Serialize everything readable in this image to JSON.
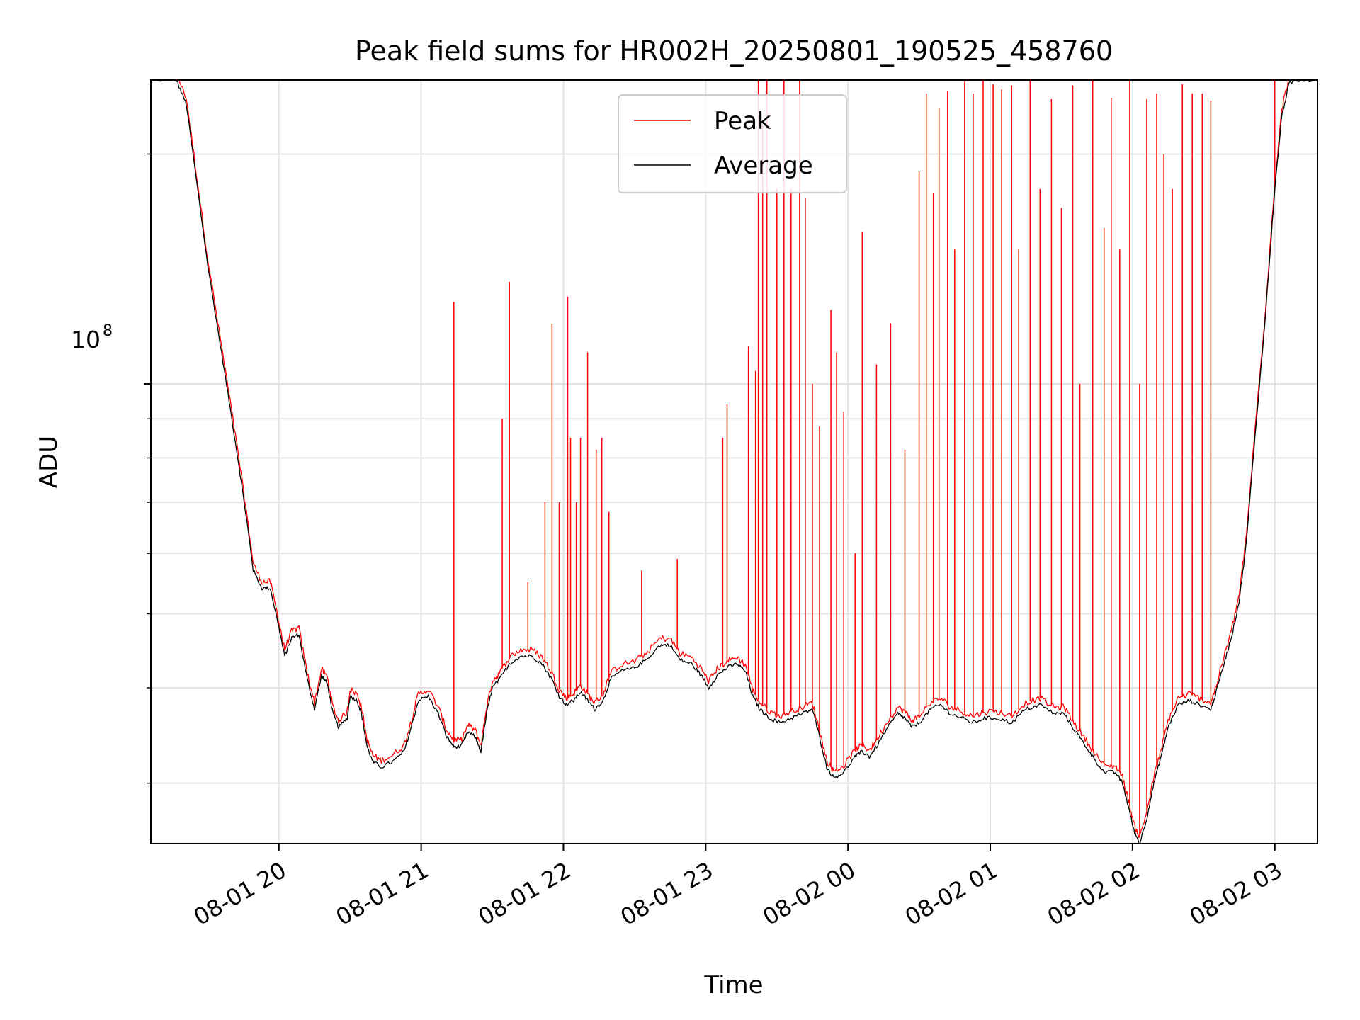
{
  "chart_data": {
    "type": "line",
    "title": "Peak field sums for HR002H_20250801_190525_458760",
    "xlabel": "Time",
    "ylabel": "ADU",
    "yscale": "log",
    "y_tick_label": {
      "base": "10",
      "exponent": "8"
    },
    "x_tick_labels": [
      "08-01 20",
      "08-01 21",
      "08-01 22",
      "08-01 23",
      "08-02 00",
      "08-02 01",
      "08-02 02",
      "08-02 03"
    ],
    "x_ticks_hours": [
      0,
      1,
      2,
      3,
      4,
      5,
      6,
      7
    ],
    "x_range_hours": [
      -0.9,
      7.3
    ],
    "ylim": [
      25000000,
      250000000
    ],
    "grid": true,
    "legend_position": "upper center",
    "series": [
      {
        "name": "Peak",
        "color": "#ff0000",
        "spikes": [
          [
            1.23,
            128000000
          ],
          [
            1.38,
            35500000
          ],
          [
            1.57,
            90000000
          ],
          [
            1.62,
            136000000
          ],
          [
            1.75,
            55000000
          ],
          [
            1.87,
            70000000
          ],
          [
            1.92,
            120000000
          ],
          [
            1.97,
            70000000
          ],
          [
            2.03,
            130000000
          ],
          [
            2.05,
            85000000
          ],
          [
            2.09,
            70000000
          ],
          [
            2.12,
            85000000
          ],
          [
            2.17,
            110000000
          ],
          [
            2.23,
            82000000
          ],
          [
            2.27,
            85000000
          ],
          [
            2.32,
            68000000
          ],
          [
            2.55,
            57000000
          ],
          [
            2.8,
            59000000
          ],
          [
            3.12,
            85000000
          ],
          [
            3.15,
            94000000
          ],
          [
            3.3,
            112000000
          ],
          [
            3.35,
            104000000
          ],
          [
            3.37,
            250000000
          ],
          [
            3.4,
            220000000
          ],
          [
            3.43,
            250000000
          ],
          [
            3.5,
            180000000
          ],
          [
            3.55,
            250000000
          ],
          [
            3.6,
            180000000
          ],
          [
            3.66,
            250000000
          ],
          [
            3.7,
            175000000
          ],
          [
            3.75,
            100000000
          ],
          [
            3.8,
            88000000
          ],
          [
            3.88,
            125000000
          ],
          [
            3.92,
            110000000
          ],
          [
            3.97,
            92000000
          ],
          [
            4.05,
            60000000
          ],
          [
            4.1,
            158000000
          ],
          [
            4.2,
            106000000
          ],
          [
            4.3,
            120000000
          ],
          [
            4.4,
            82000000
          ],
          [
            4.5,
            190000000
          ],
          [
            4.55,
            240000000
          ],
          [
            4.6,
            178000000
          ],
          [
            4.64,
            230000000
          ],
          [
            4.7,
            242000000
          ],
          [
            4.75,
            150000000
          ],
          [
            4.82,
            249000000
          ],
          [
            4.88,
            240000000
          ],
          [
            4.95,
            250000000
          ],
          [
            5.02,
            247000000
          ],
          [
            5.08,
            243000000
          ],
          [
            5.15,
            246000000
          ],
          [
            5.2,
            150000000
          ],
          [
            5.28,
            250000000
          ],
          [
            5.35,
            180000000
          ],
          [
            5.43,
            236000000
          ],
          [
            5.5,
            170000000
          ],
          [
            5.58,
            246000000
          ],
          [
            5.63,
            100000000
          ],
          [
            5.72,
            250000000
          ],
          [
            5.8,
            160000000
          ],
          [
            5.85,
            237000000
          ],
          [
            5.91,
            150000000
          ],
          [
            5.98,
            250000000
          ],
          [
            6.05,
            100000000
          ],
          [
            6.1,
            236000000
          ],
          [
            6.17,
            240000000
          ],
          [
            6.22,
            200000000
          ],
          [
            6.28,
            180000000
          ],
          [
            6.35,
            247000000
          ],
          [
            6.42,
            240000000
          ],
          [
            6.49,
            240000000
          ],
          [
            6.55,
            235000000
          ],
          [
            7.0,
            250000000
          ]
        ]
      },
      {
        "name": "Average",
        "color": "#000000"
      }
    ],
    "average_envelope": [
      [
        -0.9,
        250000000
      ],
      [
        -0.72,
        250000000
      ],
      [
        -0.65,
        232000000
      ],
      [
        -0.58,
        185000000
      ],
      [
        -0.5,
        143000000
      ],
      [
        -0.42,
        115000000
      ],
      [
        -0.35,
        95000000
      ],
      [
        -0.28,
        78000000
      ],
      [
        -0.22,
        65000000
      ],
      [
        -0.18,
        57000000
      ],
      [
        -0.12,
        54000000
      ],
      [
        -0.06,
        54000000
      ],
      [
        0.0,
        48000000
      ],
      [
        0.04,
        44000000
      ],
      [
        0.09,
        46500000
      ],
      [
        0.14,
        47000000
      ],
      [
        0.2,
        41000000
      ],
      [
        0.25,
        37500000
      ],
      [
        0.3,
        41500000
      ],
      [
        0.34,
        40500000
      ],
      [
        0.38,
        37000000
      ],
      [
        0.42,
        35500000
      ],
      [
        0.48,
        36500000
      ],
      [
        0.5,
        39000000
      ],
      [
        0.55,
        38500000
      ],
      [
        0.58,
        37000000
      ],
      [
        0.62,
        33500000
      ],
      [
        0.66,
        32000000
      ],
      [
        0.72,
        31500000
      ],
      [
        0.8,
        32000000
      ],
      [
        0.88,
        33000000
      ],
      [
        0.93,
        35500000
      ],
      [
        0.98,
        38500000
      ],
      [
        1.05,
        39000000
      ],
      [
        1.12,
        37000000
      ],
      [
        1.18,
        34500000
      ],
      [
        1.23,
        33500000
      ],
      [
        1.28,
        33500000
      ],
      [
        1.33,
        35000000
      ],
      [
        1.38,
        34500000
      ],
      [
        1.42,
        33000000
      ],
      [
        1.46,
        37000000
      ],
      [
        1.5,
        40000000
      ],
      [
        1.55,
        41000000
      ],
      [
        1.62,
        43000000
      ],
      [
        1.7,
        44000000
      ],
      [
        1.78,
        44000000
      ],
      [
        1.85,
        43000000
      ],
      [
        1.92,
        41000000
      ],
      [
        1.97,
        39000000
      ],
      [
        2.02,
        38000000
      ],
      [
        2.07,
        38500000
      ],
      [
        2.12,
        39500000
      ],
      [
        2.17,
        38500000
      ],
      [
        2.22,
        37500000
      ],
      [
        2.28,
        38500000
      ],
      [
        2.33,
        41000000
      ],
      [
        2.4,
        42000000
      ],
      [
        2.5,
        42500000
      ],
      [
        2.58,
        43500000
      ],
      [
        2.68,
        45500000
      ],
      [
        2.75,
        45500000
      ],
      [
        2.82,
        43500000
      ],
      [
        2.9,
        43000000
      ],
      [
        2.97,
        41500000
      ],
      [
        3.02,
        40000000
      ],
      [
        3.08,
        41500000
      ],
      [
        3.15,
        42500000
      ],
      [
        3.22,
        43000000
      ],
      [
        3.28,
        42000000
      ],
      [
        3.33,
        39000000
      ],
      [
        3.38,
        37500000
      ],
      [
        3.45,
        36500000
      ],
      [
        3.52,
        36000000
      ],
      [
        3.6,
        36500000
      ],
      [
        3.68,
        37000000
      ],
      [
        3.75,
        37500000
      ],
      [
        3.8,
        34500000
      ],
      [
        3.85,
        31500000
      ],
      [
        3.9,
        30500000
      ],
      [
        3.97,
        31000000
      ],
      [
        4.05,
        32500000
      ],
      [
        4.1,
        33000000
      ],
      [
        4.15,
        32500000
      ],
      [
        4.2,
        33500000
      ],
      [
        4.28,
        35500000
      ],
      [
        4.35,
        37000000
      ],
      [
        4.4,
        36500000
      ],
      [
        4.45,
        35500000
      ],
      [
        4.5,
        36000000
      ],
      [
        4.58,
        37500000
      ],
      [
        4.65,
        38000000
      ],
      [
        4.72,
        37000000
      ],
      [
        4.8,
        36500000
      ],
      [
        4.88,
        36000000
      ],
      [
        4.96,
        36500000
      ],
      [
        5.05,
        36500000
      ],
      [
        5.15,
        36000000
      ],
      [
        5.25,
        37500000
      ],
      [
        5.35,
        38000000
      ],
      [
        5.45,
        37000000
      ],
      [
        5.52,
        37000000
      ],
      [
        5.58,
        35500000
      ],
      [
        5.65,
        34000000
      ],
      [
        5.72,
        32500000
      ],
      [
        5.8,
        31000000
      ],
      [
        5.88,
        31000000
      ],
      [
        5.93,
        30000000
      ],
      [
        5.97,
        28000000
      ],
      [
        6.01,
        26000000
      ],
      [
        6.05,
        25000000
      ],
      [
        6.1,
        27000000
      ],
      [
        6.15,
        30000000
      ],
      [
        6.2,
        32500000
      ],
      [
        6.25,
        35500000
      ],
      [
        6.32,
        38000000
      ],
      [
        6.4,
        38500000
      ],
      [
        6.47,
        38000000
      ],
      [
        6.55,
        37500000
      ],
      [
        6.58,
        39000000
      ],
      [
        6.65,
        43500000
      ],
      [
        6.7,
        47000000
      ],
      [
        6.75,
        52000000
      ],
      [
        6.8,
        62000000
      ],
      [
        6.86,
        85000000
      ],
      [
        6.93,
        120000000
      ],
      [
        7.0,
        180000000
      ],
      [
        7.05,
        225000000
      ],
      [
        7.1,
        247000000
      ],
      [
        7.15,
        250000000
      ],
      [
        7.3,
        250000000
      ]
    ]
  }
}
